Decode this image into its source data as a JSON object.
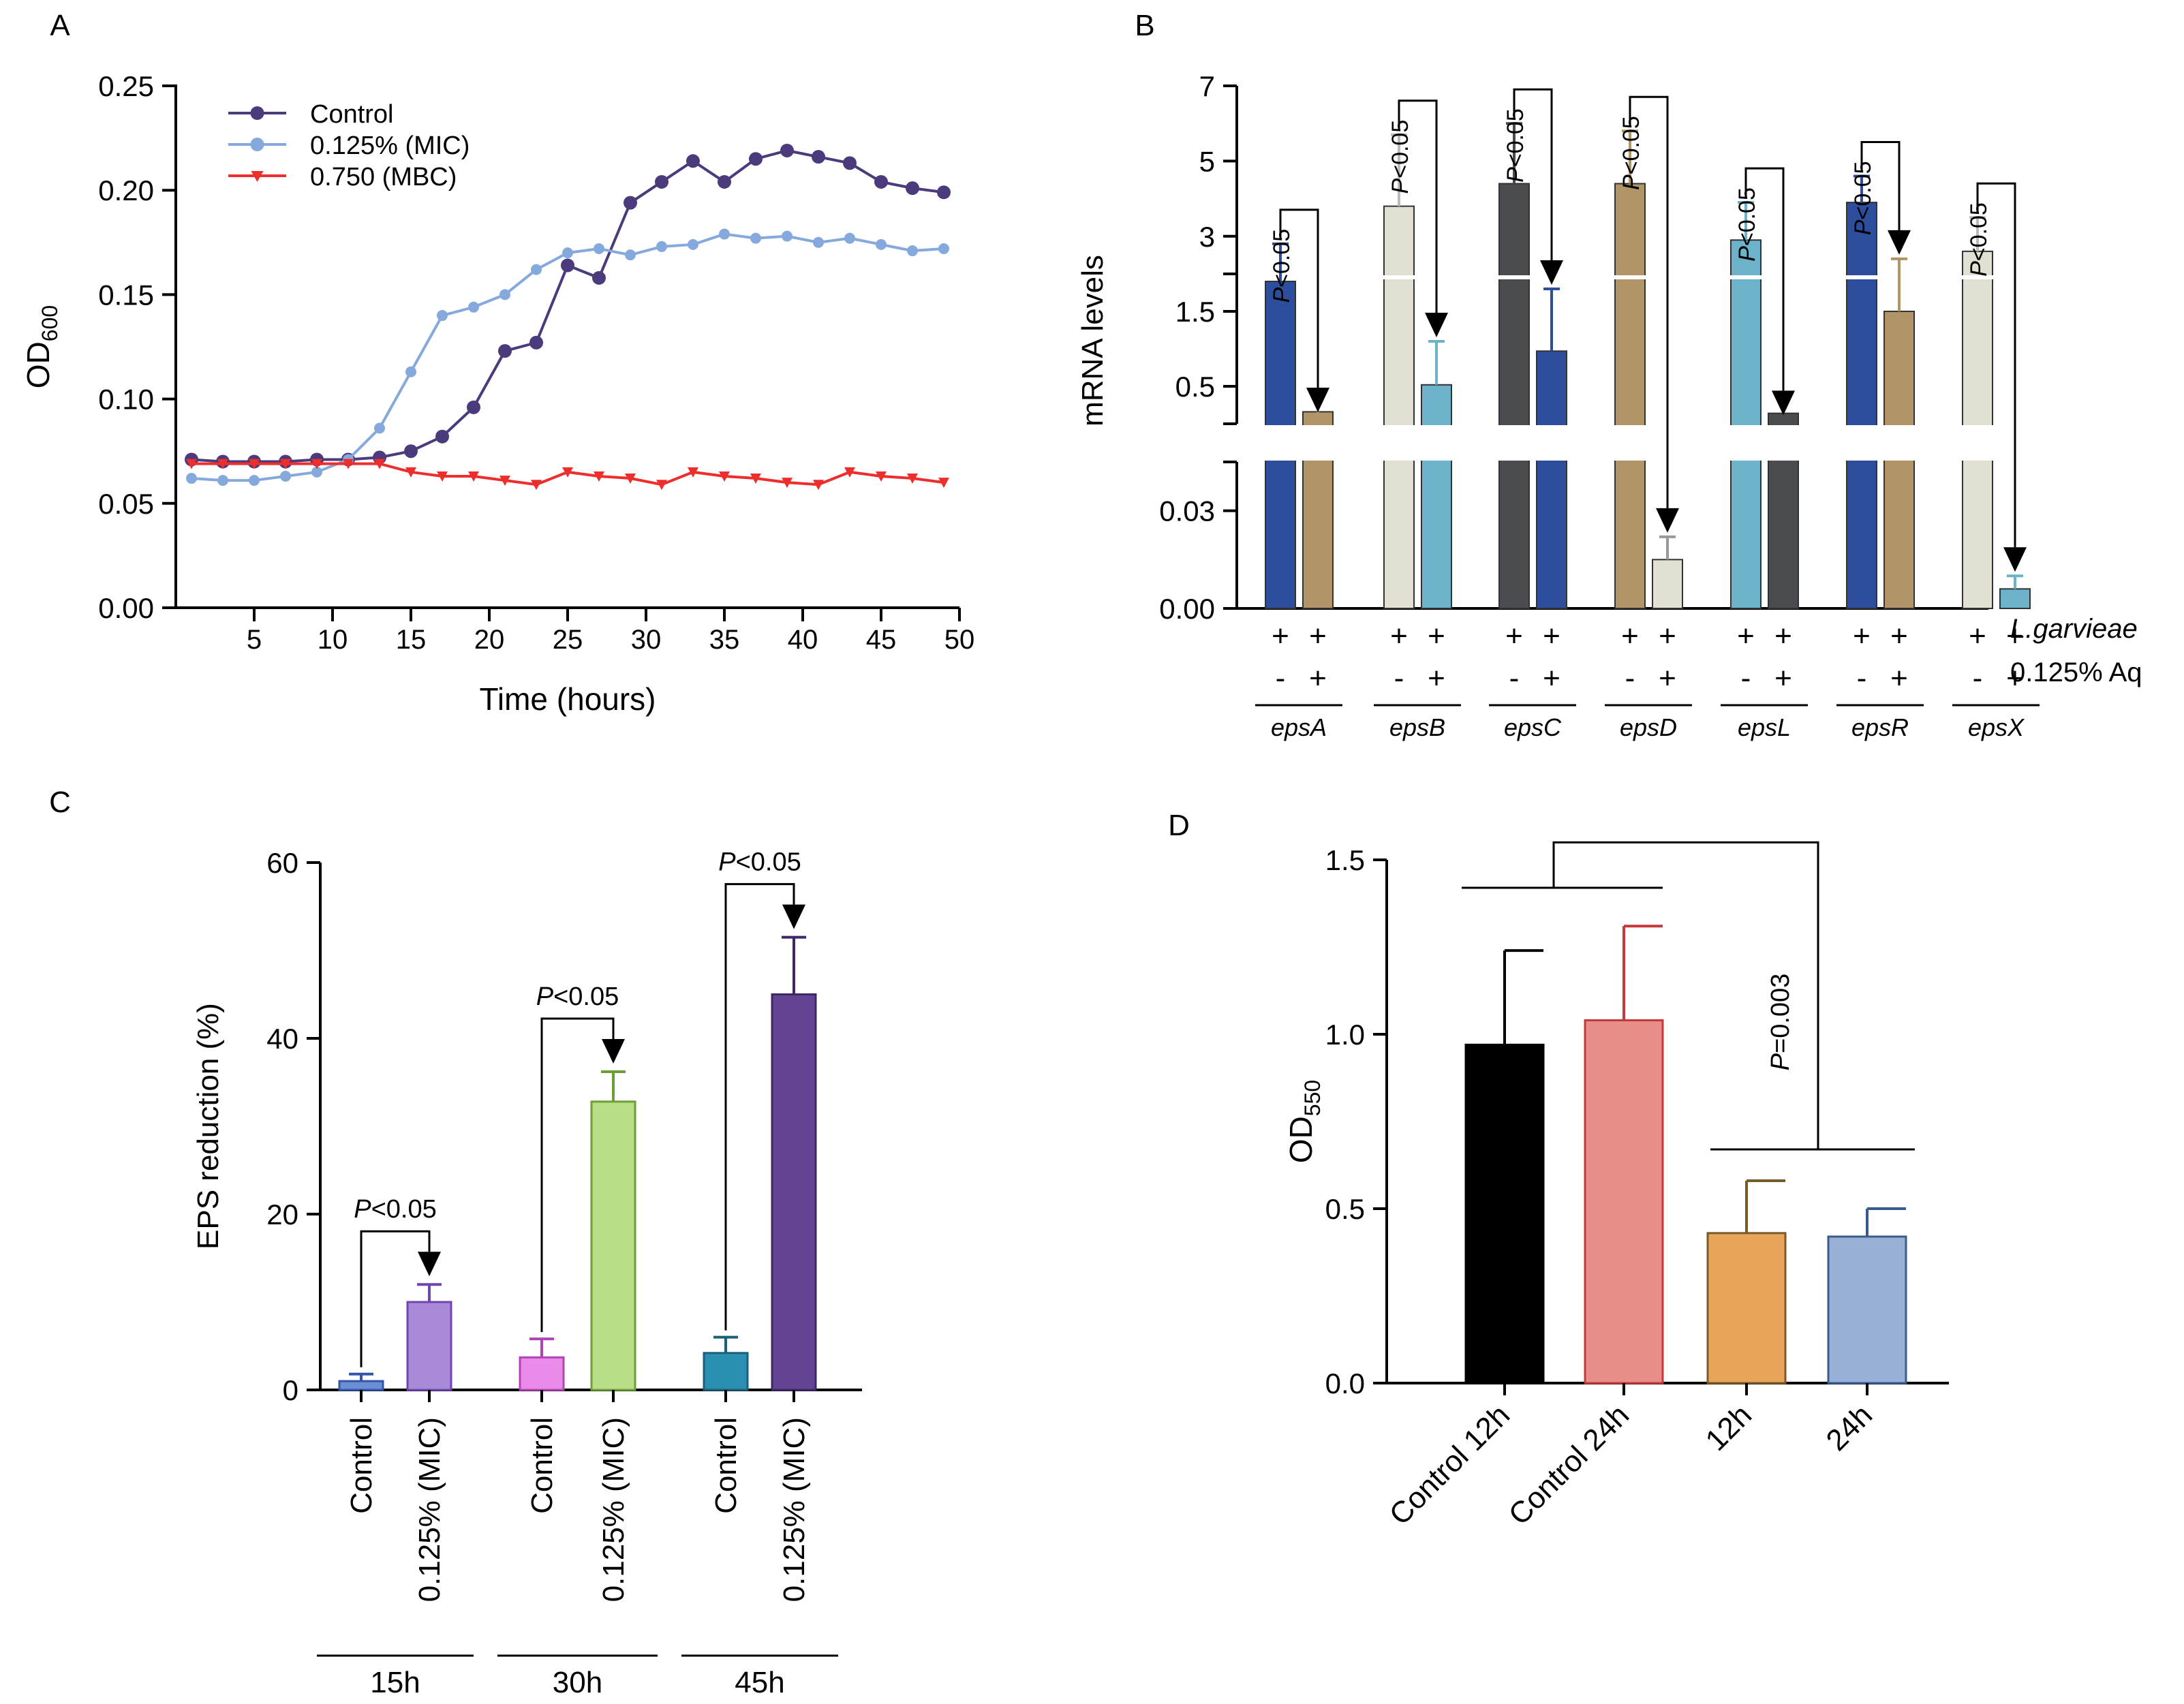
{
  "chart_data": [
    {
      "panel": "A",
      "type": "line",
      "xlabel": "Time (hours)",
      "ylabel_main": "OD",
      "ylabel_sub": "600",
      "xlim": [
        0,
        50
      ],
      "ylim": [
        0,
        0.25
      ],
      "x_ticks": [
        5,
        10,
        15,
        20,
        25,
        30,
        35,
        40,
        45,
        50
      ],
      "y_ticks": [
        "0.00",
        "0.05",
        "0.10",
        "0.15",
        "0.20",
        "0.25"
      ],
      "legend_position": "top-left",
      "series": [
        {
          "name": "Control",
          "color": "#4b3a7c",
          "marker": "circle",
          "x": [
            1,
            3,
            5,
            7,
            9,
            11,
            13,
            15,
            17,
            19,
            21,
            23,
            25,
            27,
            29,
            31,
            33,
            35,
            37,
            39,
            41,
            43,
            45,
            47,
            49
          ],
          "y": [
            0.071,
            0.07,
            0.07,
            0.07,
            0.071,
            0.071,
            0.072,
            0.075,
            0.082,
            0.096,
            0.123,
            0.127,
            0.164,
            0.158,
            0.194,
            0.204,
            0.214,
            0.204,
            0.215,
            0.219,
            0.216,
            0.213,
            0.204,
            0.201,
            0.199
          ]
        },
        {
          "name": "0.125% (MIC)",
          "color": "#86a9dd",
          "marker": "circle",
          "x": [
            1,
            3,
            5,
            7,
            9,
            11,
            13,
            15,
            17,
            19,
            21,
            23,
            25,
            27,
            29,
            31,
            33,
            35,
            37,
            39,
            41,
            43,
            45,
            47,
            49
          ],
          "y": [
            0.062,
            0.061,
            0.061,
            0.063,
            0.065,
            0.071,
            0.086,
            0.113,
            0.14,
            0.144,
            0.15,
            0.162,
            0.17,
            0.172,
            0.169,
            0.173,
            0.174,
            0.179,
            0.177,
            0.178,
            0.175,
            0.177,
            0.174,
            0.171,
            0.172
          ]
        },
        {
          "name": "0.750 (MBC)",
          "color": "#ee2d2d",
          "marker": "triangle-down",
          "x": [
            1,
            3,
            5,
            7,
            9,
            11,
            13,
            15,
            17,
            19,
            21,
            23,
            25,
            27,
            29,
            31,
            33,
            35,
            37,
            39,
            41,
            43,
            45,
            47,
            49
          ],
          "y": [
            0.069,
            0.069,
            0.069,
            0.069,
            0.069,
            0.069,
            0.069,
            0.065,
            0.063,
            0.063,
            0.061,
            0.059,
            0.065,
            0.063,
            0.062,
            0.059,
            0.065,
            0.063,
            0.062,
            0.06,
            0.059,
            0.065,
            0.063,
            0.062,
            0.06
          ]
        }
      ]
    },
    {
      "panel": "B",
      "type": "bar",
      "ylabel": "mRNA levels",
      "y_ticks_top": [
        "7",
        "5",
        "3"
      ],
      "y_ticks_mid": [
        "1.5",
        "0.5"
      ],
      "y_ticks_bottom": [
        "0.03",
        "0.00"
      ],
      "row_labels": [
        "L.garvieae",
        "0.125% Aq"
      ],
      "row_values_treated": [
        "+",
        "+"
      ],
      "row_values_control": [
        "+",
        "-"
      ],
      "p_label": "P<0.05",
      "groups": [
        {
          "gene": "epsA",
          "control": 1.9,
          "control_err": 2.8,
          "treated": 0.16,
          "treated_err": 0.1,
          "control_color": "#2d4e9c",
          "treated_color": "#b19566"
        },
        {
          "gene": "epsB",
          "control": 3.8,
          "control_err": 5.7,
          "treated": 0.52,
          "treated_err": 1.1,
          "control_color": "#e2dfd3",
          "treated_color": "#6cb2cb"
        },
        {
          "gene": "epsC",
          "control": 4.4,
          "control_err": 6.0,
          "treated": 0.97,
          "treated_err": 1.8,
          "control_color": "#4a4c4f",
          "treated_color": "#2d4e9c"
        },
        {
          "gene": "epsD",
          "control": 4.4,
          "control_err": 5.8,
          "treated": 0.015,
          "treated_err": 0.022,
          "control_color": "#b19566",
          "treated_color": "#e2dfd3"
        },
        {
          "gene": "epsL",
          "control": 2.9,
          "control_err": 3.9,
          "treated": 0.14,
          "treated_err": 0.06,
          "control_color": "#6cb2cb",
          "treated_color": "#4a4c4f"
        },
        {
          "gene": "epsR",
          "control": 3.9,
          "control_err": 4.6,
          "treated": 1.5,
          "treated_err": 2.4,
          "control_color": "#2d4e9c",
          "treated_color": "#b19566"
        },
        {
          "gene": "epsX",
          "control": 2.6,
          "control_err": 3.5,
          "treated": 0.006,
          "treated_err": 0.01,
          "control_color": "#e2dfd3",
          "treated_color": "#6cb2cb"
        }
      ]
    },
    {
      "panel": "C",
      "type": "bar",
      "ylabel": "EPS reduction (%)",
      "ylim": [
        0,
        60
      ],
      "y_ticks": [
        "0",
        "20",
        "40",
        "60"
      ],
      "p_label": "P<0.05",
      "groups": [
        {
          "time": "15h",
          "bars": [
            {
              "label": "Control",
              "value": 1.0,
              "err": 1.8,
              "color": "#6b8fd4",
              "edge": "#3455a8"
            },
            {
              "label": "0.125% (MIC)",
              "value": 10.0,
              "err": 12.0,
              "color": "#a98ad8",
              "edge": "#6f46b0"
            }
          ]
        },
        {
          "time": "30h",
          "bars": [
            {
              "label": "Control",
              "value": 3.7,
              "err": 5.8,
              "color": "#ea8be9",
              "edge": "#b144b5"
            },
            {
              "label": "0.125% (MIC)",
              "value": 32.8,
              "err": 36.2,
              "color": "#b8df87",
              "edge": "#6d9f35"
            }
          ]
        },
        {
          "time": "45h",
          "bars": [
            {
              "label": "Control",
              "value": 4.2,
              "err": 6.0,
              "color": "#2a8fb0",
              "edge": "#1b5f78"
            },
            {
              "label": "0.125% (MIC)",
              "value": 45.0,
              "err": 51.5,
              "color": "#634394",
              "edge": "#3f2868"
            }
          ]
        }
      ]
    },
    {
      "panel": "D",
      "type": "bar",
      "ylabel_main": "OD",
      "ylabel_sub": "550",
      "ylim": [
        0,
        1.5
      ],
      "y_ticks": [
        "0.0",
        "0.5",
        "1.0",
        "1.5"
      ],
      "p_label": "P=0.003",
      "bars": [
        {
          "label": "Control 12h",
          "value": 0.97,
          "err": 1.24,
          "color": "#000000",
          "edge": "#000000",
          "err_color": "#000000"
        },
        {
          "label": "Control 24h",
          "value": 1.04,
          "err": 1.31,
          "color": "#e88e88",
          "edge": "#c23a3a",
          "err_color": "#c23a3a"
        },
        {
          "label": "12h",
          "value": 0.43,
          "err": 0.58,
          "color": "#e8a55a",
          "edge": "#7a5a2a",
          "err_color": "#7a5a2a"
        },
        {
          "label": "24h",
          "value": 0.42,
          "err": 0.5,
          "color": "#98b0d6",
          "edge": "#3a5c8c",
          "err_color": "#3a5c8c"
        }
      ]
    }
  ]
}
